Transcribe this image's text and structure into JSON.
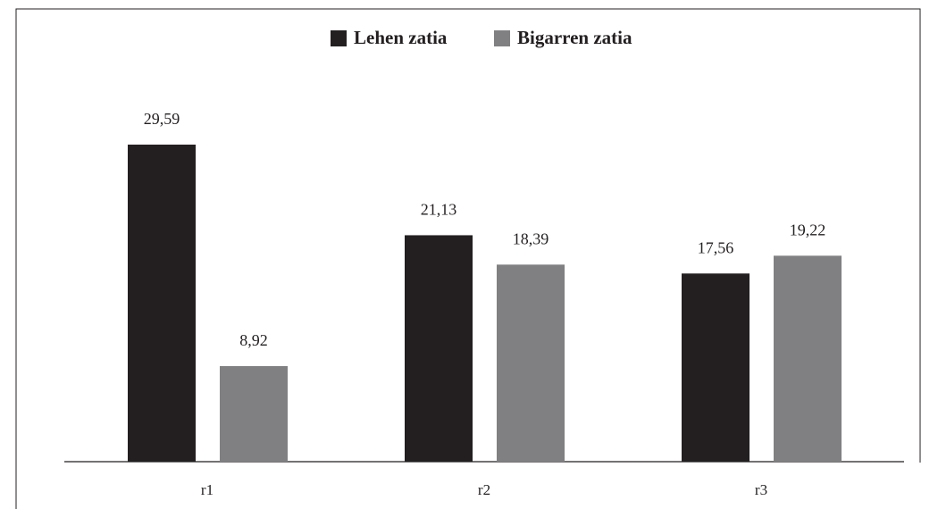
{
  "chart_data": {
    "type": "bar",
    "categories": [
      "r1",
      "r2",
      "r3"
    ],
    "series": [
      {
        "name": "Lehen zatia",
        "color": "#231f20",
        "values": [
          29.59,
          21.13,
          17.56
        ],
        "value_labels": [
          "29,59",
          "21,13",
          "17,56"
        ]
      },
      {
        "name": "Bigarren zatia",
        "color": "#808083",
        "values": [
          8.92,
          18.39,
          19.22
        ],
        "value_labels": [
          "8,92",
          "18,39",
          "19,22"
        ]
      }
    ],
    "ylim": [
      0,
      30
    ],
    "legend": "top"
  }
}
